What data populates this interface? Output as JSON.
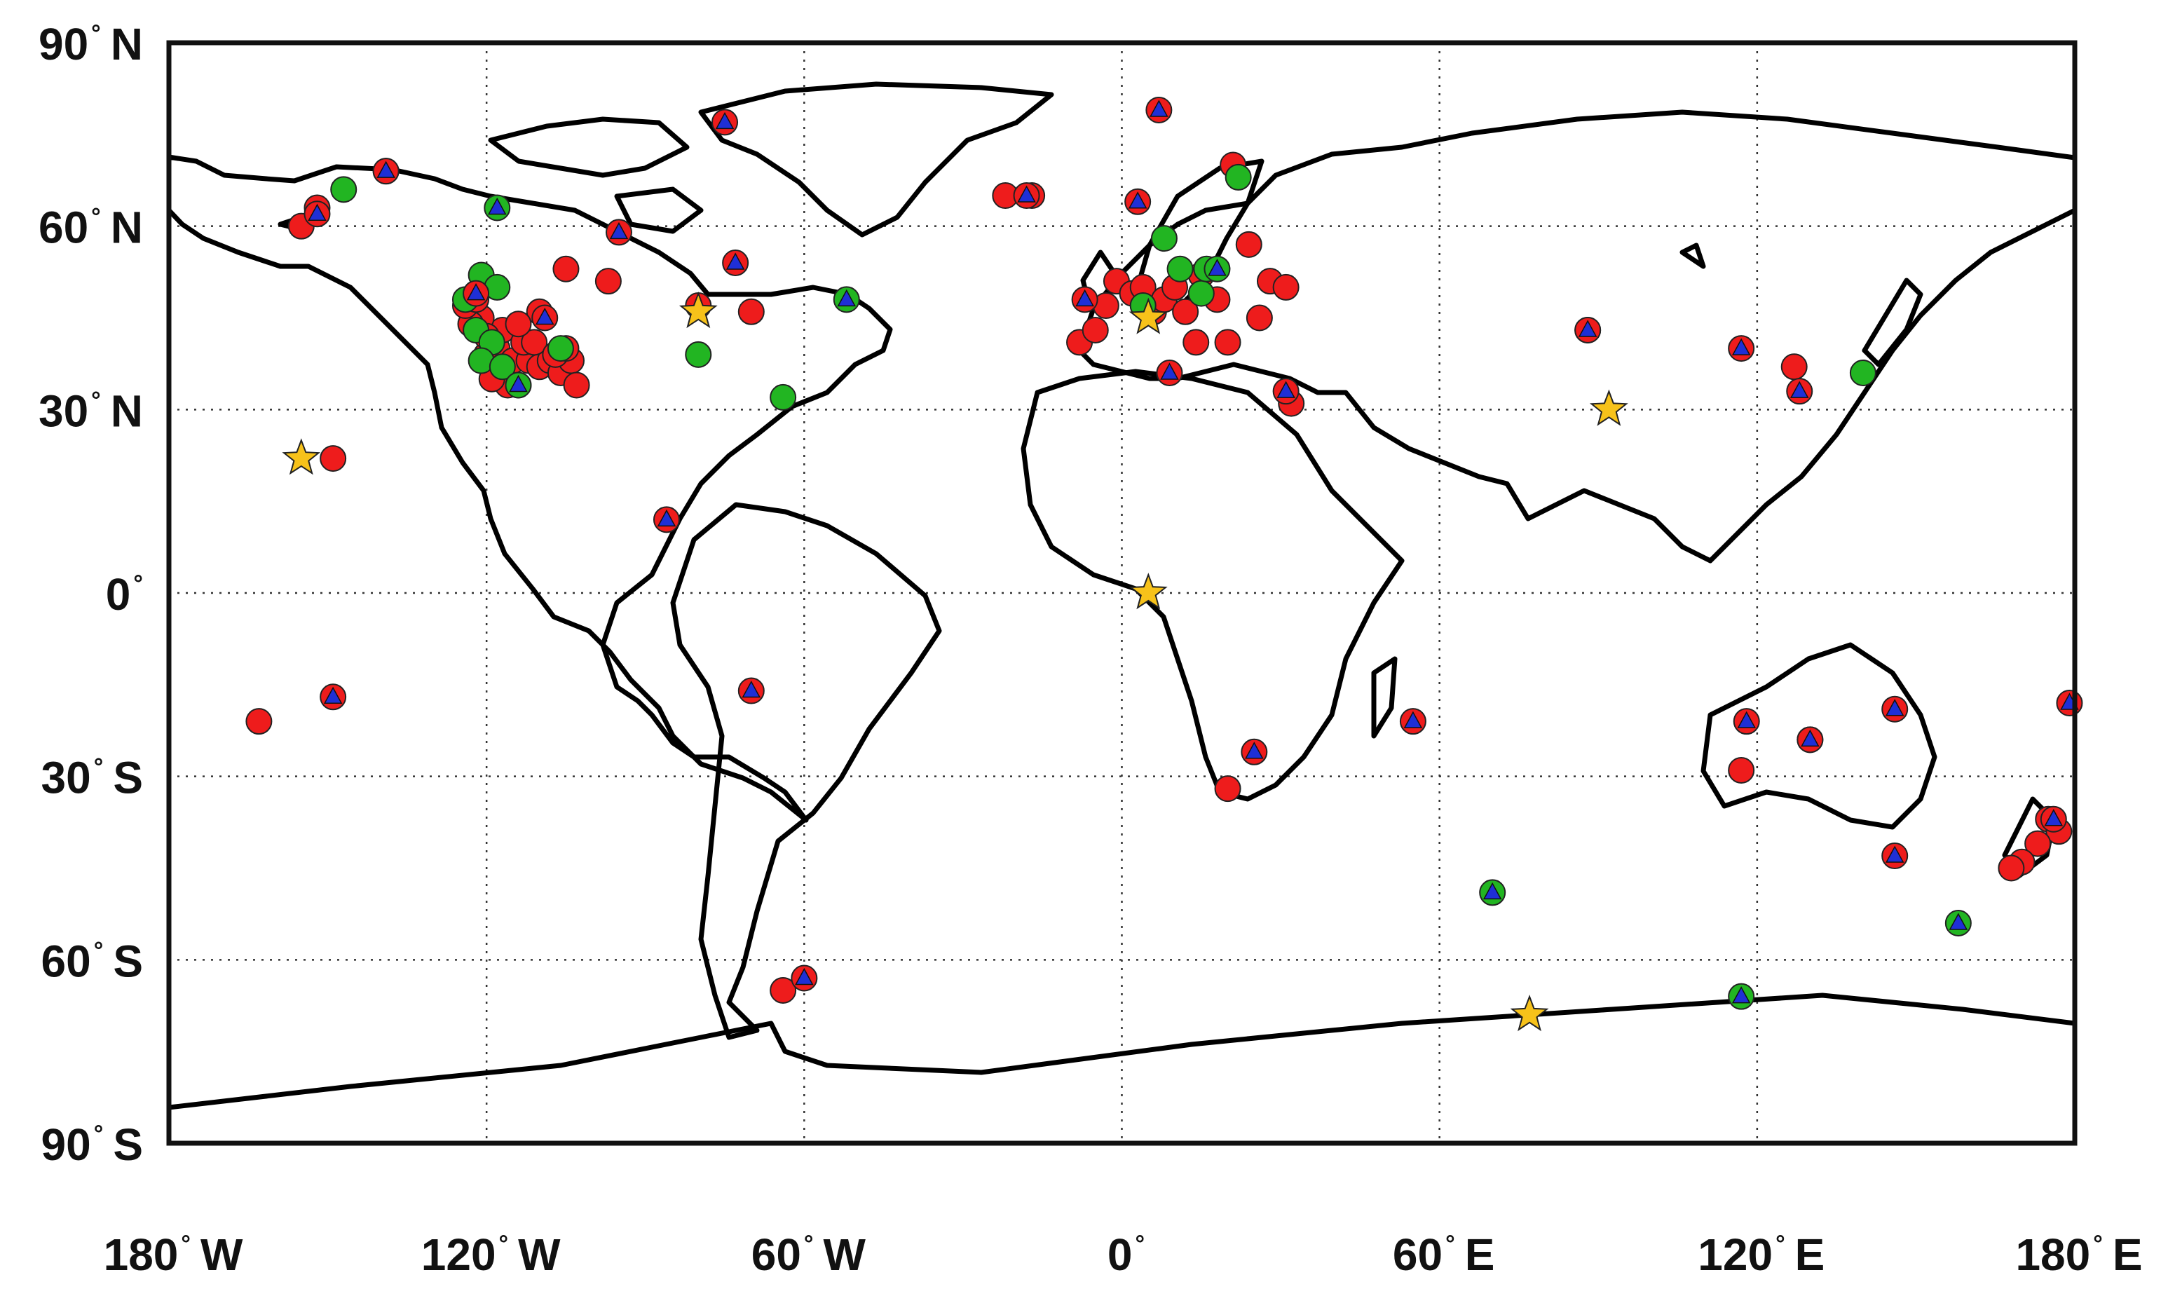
{
  "chart_data": {
    "type": "scatter",
    "projection": "equirectangular",
    "xlim": [
      -180,
      180
    ],
    "ylim": [
      -90,
      90
    ],
    "grid": true,
    "x_ticks": [
      {
        "value": -180,
        "num": "180",
        "hemi": "W"
      },
      {
        "value": -120,
        "num": "120",
        "hemi": "W"
      },
      {
        "value": -60,
        "num": "60",
        "hemi": "W"
      },
      {
        "value": 0,
        "num": "0",
        "hemi": ""
      },
      {
        "value": 60,
        "num": "60",
        "hemi": "E"
      },
      {
        "value": 120,
        "num": "120",
        "hemi": "E"
      },
      {
        "value": 180,
        "num": "180",
        "hemi": "E"
      }
    ],
    "y_ticks": [
      {
        "value": 90,
        "num": "90",
        "hemi": "N"
      },
      {
        "value": 60,
        "num": "60",
        "hemi": "N"
      },
      {
        "value": 30,
        "num": "30",
        "hemi": "N"
      },
      {
        "value": 0,
        "num": "0",
        "hemi": ""
      },
      {
        "value": -30,
        "num": "30",
        "hemi": "S"
      },
      {
        "value": -60,
        "num": "60",
        "hemi": "S"
      },
      {
        "value": -90,
        "num": "90",
        "hemi": "S"
      }
    ],
    "colors": {
      "red_site": "#ee1c1c",
      "green_site": "#22b522",
      "triangle": "#1f2fd6",
      "star": "#f7c21a",
      "coast": "#000000"
    },
    "red_sites": [
      [
        -163,
        -21
      ],
      [
        -149,
        22
      ],
      [
        -155,
        60
      ],
      [
        -152,
        63
      ],
      [
        -139,
        69
      ],
      [
        -105,
        53
      ],
      [
        -97,
        51
      ],
      [
        -110,
        46
      ],
      [
        -120,
        39
      ],
      [
        -118,
        40
      ],
      [
        -115,
        38
      ],
      [
        -112,
        38
      ],
      [
        -110,
        37
      ],
      [
        -108,
        38
      ],
      [
        -106,
        36
      ],
      [
        -104,
        38
      ],
      [
        -117,
        43
      ],
      [
        -113,
        41
      ],
      [
        -111,
        41
      ],
      [
        -121,
        45
      ],
      [
        -123,
        44
      ],
      [
        -124,
        47
      ],
      [
        -122,
        48
      ],
      [
        -120,
        42
      ],
      [
        -116,
        34
      ],
      [
        -119,
        35
      ],
      [
        -107,
        39
      ],
      [
        -105,
        40
      ],
      [
        -103,
        34
      ],
      [
        -114,
        44
      ],
      [
        -70,
        46
      ],
      [
        -80,
        47
      ],
      [
        -22,
        65
      ],
      [
        -17,
        65
      ],
      [
        -8,
        41
      ],
      [
        -5,
        43
      ],
      [
        -3,
        47
      ],
      [
        -1,
        51
      ],
      [
        2,
        49
      ],
      [
        4,
        50
      ],
      [
        6,
        46
      ],
      [
        8,
        48
      ],
      [
        10,
        50
      ],
      [
        12,
        46
      ],
      [
        14,
        41
      ],
      [
        15,
        52
      ],
      [
        18,
        48
      ],
      [
        20,
        41
      ],
      [
        21,
        70
      ],
      [
        24,
        57
      ],
      [
        26,
        45
      ],
      [
        28,
        51
      ],
      [
        31,
        50
      ],
      [
        32,
        31
      ],
      [
        88,
        43
      ],
      [
        127,
        37
      ],
      [
        -64,
        -65
      ],
      [
        130,
        -24
      ],
      [
        117,
        -29
      ],
      [
        20,
        -32
      ],
      [
        175,
        -37
      ],
      [
        177,
        -39
      ],
      [
        173,
        -41
      ],
      [
        170,
        -44
      ],
      [
        168,
        -45
      ]
    ],
    "green_sites": [
      [
        -147,
        66
      ],
      [
        -124,
        48
      ],
      [
        -121,
        52
      ],
      [
        -118,
        50
      ],
      [
        -122,
        43
      ],
      [
        -119,
        41
      ],
      [
        -121,
        38
      ],
      [
        -117,
        37
      ],
      [
        -114,
        34
      ],
      [
        -106,
        40
      ],
      [
        -80,
        39
      ],
      [
        -64,
        32
      ],
      [
        4,
        47
      ],
      [
        8,
        58
      ],
      [
        11,
        53
      ],
      [
        15,
        49
      ],
      [
        16,
        53
      ],
      [
        22,
        68
      ],
      [
        140,
        36
      ]
    ],
    "triangle_sites": [
      [
        -152,
        62,
        "red"
      ],
      [
        -139,
        69,
        "red"
      ],
      [
        -118,
        63,
        "green"
      ],
      [
        -122,
        49,
        "red"
      ],
      [
        -114,
        34,
        "green"
      ],
      [
        -109,
        45,
        "red"
      ],
      [
        -95,
        59,
        "red"
      ],
      [
        -75,
        77,
        "red"
      ],
      [
        -73,
        54,
        "red"
      ],
      [
        -52,
        48,
        "green"
      ],
      [
        -86,
        12,
        "red"
      ],
      [
        -149,
        -17,
        "red"
      ],
      [
        -70,
        -16,
        "red"
      ],
      [
        -60,
        -63,
        "red"
      ],
      [
        -18,
        65,
        "red"
      ],
      [
        -7,
        48,
        "red"
      ],
      [
        3,
        64,
        "red"
      ],
      [
        7,
        79,
        "red"
      ],
      [
        9,
        36,
        "red"
      ],
      [
        18,
        53,
        "green"
      ],
      [
        31,
        33,
        "red"
      ],
      [
        25,
        -26,
        "red"
      ],
      [
        55,
        -21,
        "red"
      ],
      [
        70,
        -49,
        "green"
      ],
      [
        88,
        43,
        "red"
      ],
      [
        117,
        40,
        "red"
      ],
      [
        118,
        -21,
        "red"
      ],
      [
        128,
        33,
        "red"
      ],
      [
        130,
        -24,
        "red"
      ],
      [
        117,
        -66,
        "green"
      ],
      [
        146,
        -19,
        "red"
      ],
      [
        146,
        -43,
        "red"
      ],
      [
        158,
        -54,
        "green"
      ],
      [
        176,
        -37,
        "red"
      ],
      [
        179,
        -18,
        "red"
      ]
    ],
    "star_sites": [
      [
        -155,
        22
      ],
      [
        -80,
        46
      ],
      [
        5,
        45
      ],
      [
        5,
        0
      ],
      [
        92,
        30
      ],
      [
        77,
        -69
      ]
    ]
  }
}
